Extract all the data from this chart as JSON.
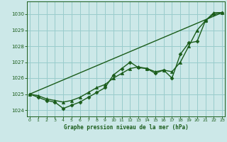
{
  "title": "Graphe pression niveau de la mer (hPa)",
  "bg_color": "#cce8e8",
  "grid_color": "#99cccc",
  "line_color": "#1a5c1a",
  "xlim": [
    -0.3,
    23.3
  ],
  "ylim": [
    1023.6,
    1030.8
  ],
  "xticks": [
    0,
    1,
    2,
    3,
    4,
    5,
    6,
    7,
    8,
    9,
    10,
    11,
    12,
    13,
    14,
    15,
    16,
    17,
    18,
    19,
    20,
    21,
    22,
    23
  ],
  "yticks": [
    1024,
    1025,
    1026,
    1027,
    1028,
    1029,
    1030
  ],
  "series_straight": {
    "x": [
      0,
      23
    ],
    "y": [
      1025.0,
      1030.1
    ],
    "linewidth": 1.0
  },
  "series_smooth": {
    "x": [
      0,
      1,
      2,
      3,
      4,
      5,
      6,
      7,
      8,
      9,
      10,
      11,
      12,
      13,
      14,
      15,
      16,
      17,
      18,
      19,
      20,
      21,
      22,
      23
    ],
    "y": [
      1025.0,
      1024.9,
      1024.7,
      1024.6,
      1024.5,
      1024.6,
      1024.8,
      1025.1,
      1025.4,
      1025.6,
      1026.0,
      1026.3,
      1026.6,
      1026.7,
      1026.6,
      1026.4,
      1026.5,
      1026.4,
      1027.0,
      1028.0,
      1029.0,
      1029.6,
      1030.1,
      1030.1
    ],
    "marker": "^",
    "markersize": 3,
    "linewidth": 1.0
  },
  "series_jagged": {
    "x": [
      0,
      1,
      2,
      3,
      4,
      5,
      6,
      7,
      8,
      9,
      10,
      11,
      12,
      13,
      14,
      15,
      16,
      17,
      18,
      19,
      20,
      21,
      22,
      23
    ],
    "y": [
      1025.0,
      1024.8,
      1024.6,
      1024.5,
      1024.1,
      1024.3,
      1024.5,
      1024.8,
      1025.1,
      1025.4,
      1026.2,
      1026.6,
      1027.0,
      1026.65,
      1026.6,
      1026.3,
      1026.5,
      1026.0,
      1027.5,
      1028.2,
      1028.3,
      1029.6,
      1030.0,
      1030.1
    ],
    "marker": "D",
    "markersize": 2.5,
    "linewidth": 1.0
  }
}
